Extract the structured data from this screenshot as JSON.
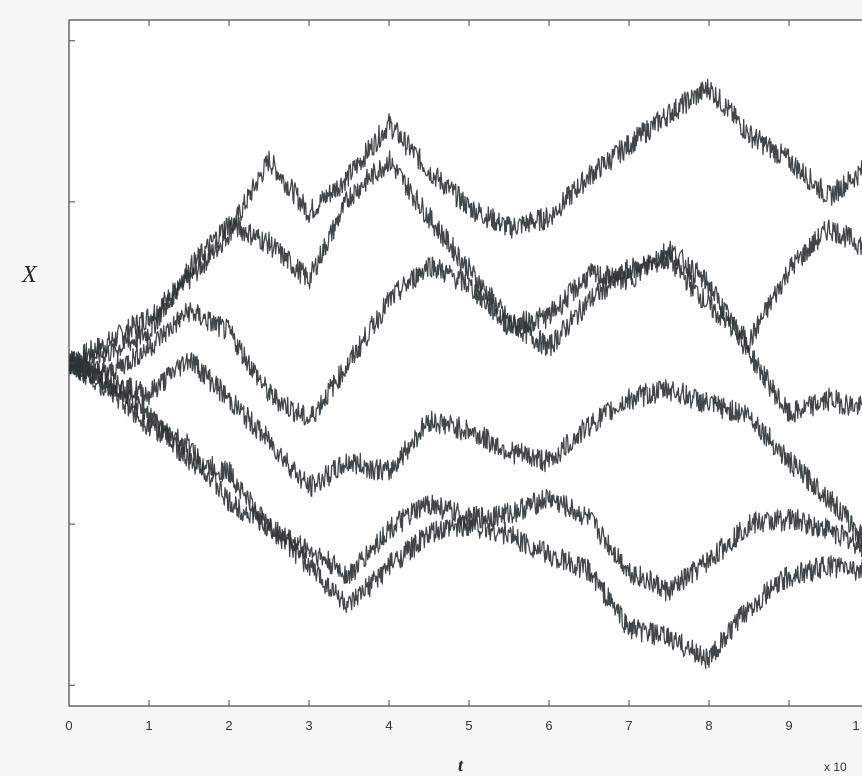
{
  "chart_data": {
    "type": "line",
    "title": "",
    "xlabel": "t",
    "ylabel": "X",
    "x_exponent_label": "x 10",
    "xlim": [
      0,
      10
    ],
    "x_ticks": [
      "0",
      "1",
      "2",
      "3",
      "4",
      "5",
      "6",
      "7",
      "8",
      "9",
      "1"
    ],
    "grid": false,
    "legend": "none",
    "line_color": "#2d3234",
    "series": [
      {
        "x": [
          0,
          0.5,
          1,
          1.5,
          2,
          2.5,
          3,
          3.5,
          4,
          4.5,
          5,
          5.5,
          6,
          6.5,
          7,
          7.5,
          8,
          8.5,
          9,
          9.5,
          10
        ],
        "values": [
          0,
          0.2,
          0.45,
          0.8,
          1.25,
          1.95,
          1.45,
          1.8,
          2.3,
          1.85,
          1.5,
          1.3,
          1.4,
          1.8,
          2.1,
          2.4,
          2.65,
          2.2,
          1.95,
          1.6,
          1.9
        ]
      },
      {
        "x": [
          0,
          0.5,
          1,
          1.5,
          2,
          2.5,
          3,
          3.5,
          4,
          4.5,
          5,
          5.5,
          6,
          6.5,
          7,
          7.5,
          8,
          8.5,
          9,
          9.5,
          10
        ],
        "values": [
          0,
          0.1,
          0.3,
          0.9,
          1.35,
          1.15,
          0.8,
          1.6,
          1.95,
          1.4,
          0.9,
          0.4,
          0.15,
          0.6,
          0.9,
          1.0,
          0.55,
          0.2,
          0.9,
          1.3,
          1.1
        ]
      },
      {
        "x": [
          0,
          0.5,
          1,
          1.5,
          2,
          2.5,
          3,
          3.5,
          4,
          4.5,
          5,
          5.5,
          6,
          6.5,
          7,
          7.5,
          8,
          8.5,
          9,
          9.5,
          10
        ],
        "values": [
          0,
          -0.1,
          0.15,
          0.5,
          0.3,
          -0.3,
          -0.55,
          0.0,
          0.6,
          0.95,
          0.75,
          0.35,
          0.45,
          0.85,
          0.8,
          1.1,
          0.75,
          0.1,
          -0.5,
          -0.35,
          -0.45
        ]
      },
      {
        "x": [
          0,
          0.5,
          1,
          1.5,
          2,
          2.5,
          3,
          3.5,
          4,
          4.5,
          5,
          5.5,
          6,
          6.5,
          7,
          7.5,
          8,
          8.5,
          9,
          9.5,
          10
        ],
        "values": [
          0,
          -0.2,
          -0.3,
          0.05,
          -0.35,
          -0.75,
          -1.2,
          -0.95,
          -1.05,
          -0.55,
          -0.65,
          -0.85,
          -0.95,
          -0.6,
          -0.35,
          -0.25,
          -0.4,
          -0.5,
          -0.95,
          -1.3,
          -1.75
        ]
      },
      {
        "x": [
          0,
          0.5,
          1,
          1.5,
          2,
          2.5,
          3,
          3.5,
          4,
          4.5,
          5,
          5.5,
          6,
          6.5,
          7,
          7.5,
          8,
          8.5,
          9,
          9.5,
          10
        ],
        "values": [
          0,
          -0.15,
          -0.5,
          -0.95,
          -1.05,
          -1.6,
          -1.8,
          -2.05,
          -1.6,
          -1.35,
          -1.5,
          -1.45,
          -1.3,
          -1.5,
          -2.0,
          -2.2,
          -1.9,
          -1.55,
          -1.5,
          -1.6,
          -1.8
        ]
      },
      {
        "x": [
          0,
          0.5,
          1,
          1.5,
          2,
          2.5,
          3,
          3.5,
          4,
          4.5,
          5,
          5.5,
          6,
          6.5,
          7,
          7.5,
          8,
          8.5,
          9,
          9.5,
          10
        ],
        "values": [
          0,
          -0.25,
          -0.6,
          -0.8,
          -1.35,
          -1.55,
          -1.95,
          -2.35,
          -1.95,
          -1.65,
          -1.55,
          -1.65,
          -1.85,
          -2.0,
          -2.55,
          -2.65,
          -2.85,
          -2.35,
          -2.05,
          -1.95,
          -2.0
        ]
      }
    ]
  }
}
